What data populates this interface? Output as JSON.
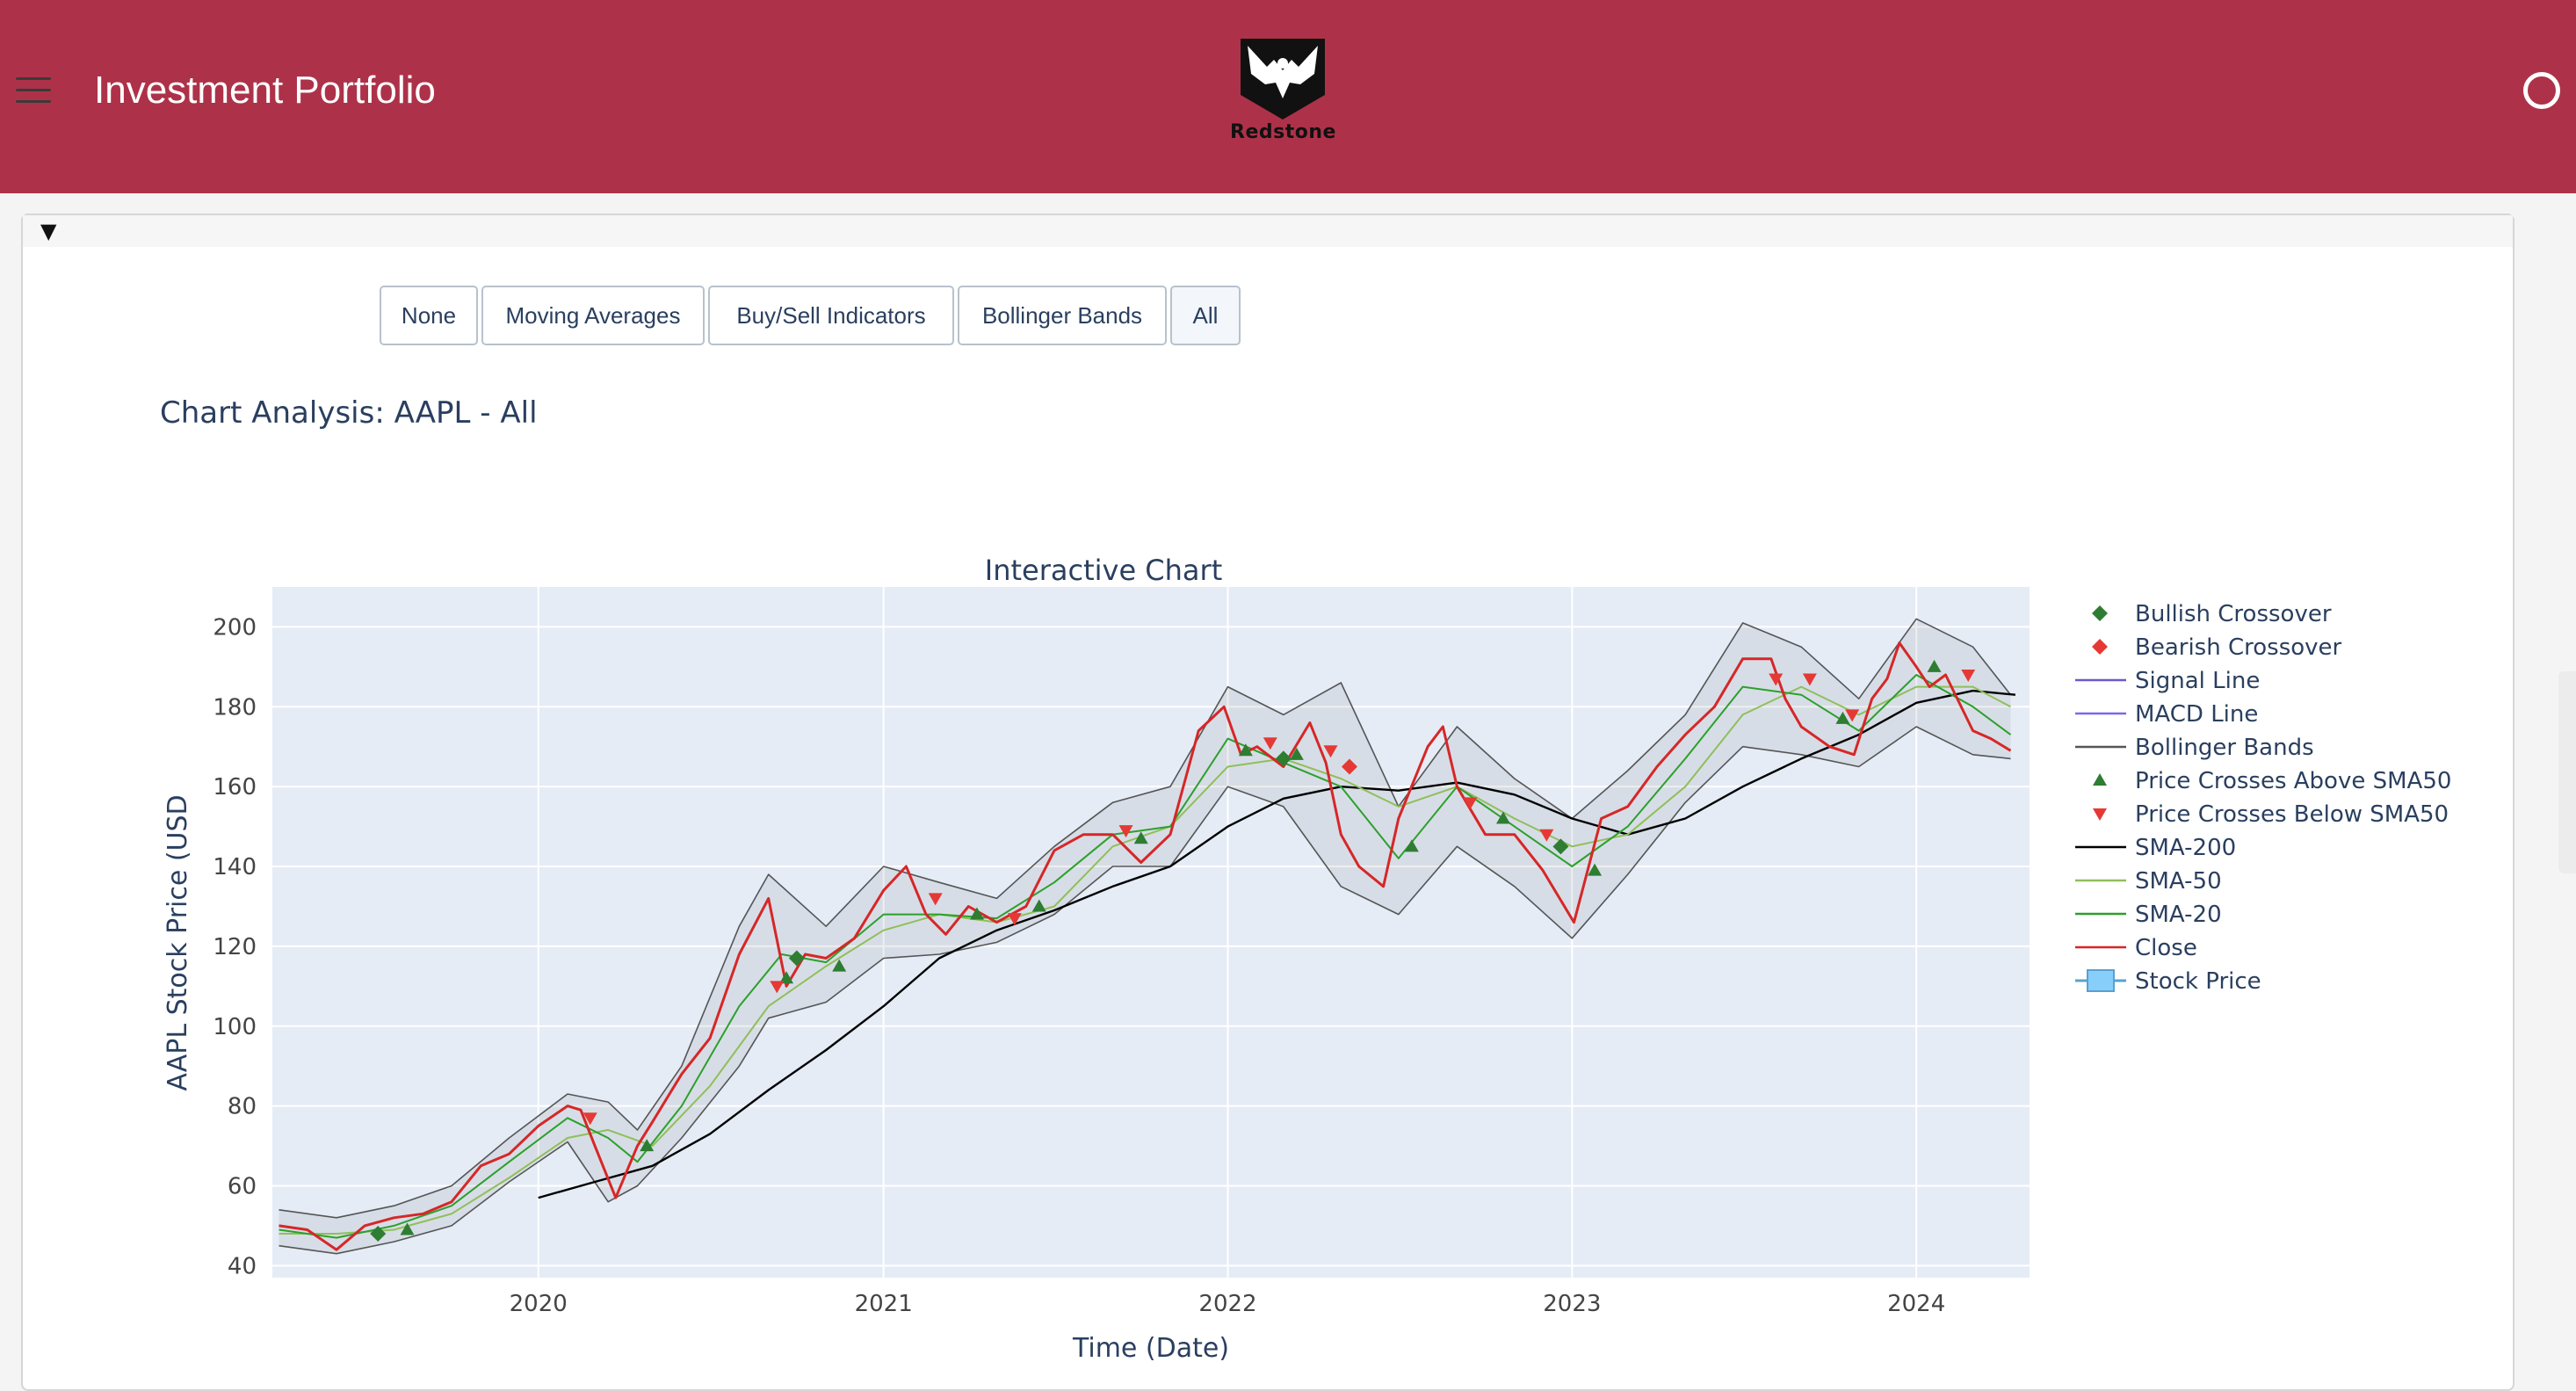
{
  "header": {
    "title": "Investment Portfolio",
    "logo_text": "Redstone",
    "brand_color": "#ad3249"
  },
  "toolbar": {
    "buttons": [
      "None",
      "Moving Averages",
      "Buy/Sell Indicators",
      "Bollinger Bands",
      "All"
    ],
    "selected": "All"
  },
  "analysis": {
    "title": "Chart Analysis: AAPL - All"
  },
  "chart_data": {
    "type": "line",
    "title": "Interactive Chart",
    "xlabel": "Time (Date)",
    "ylabel": "AAPL Stock Price (USD",
    "xlim": [
      "2019-03-25",
      "2024-04-30"
    ],
    "ylim": [
      37,
      210
    ],
    "x_ticks": [
      "2020",
      "2021",
      "2022",
      "2023",
      "2024"
    ],
    "y_ticks": [
      40,
      60,
      80,
      100,
      120,
      140,
      160,
      180,
      200
    ],
    "grid": true,
    "legend_position": "right",
    "colors": {
      "plot_bg": "#e5ecf6",
      "close": "#d62728",
      "sma20": "#2ca02c",
      "sma50": "#8fbf5a",
      "sma200": "#000000",
      "bollinger": "#555555",
      "macd": "#7b68ee",
      "signal": "#6a5acd",
      "bull": "#2e7d32",
      "bear": "#e53935",
      "stock_price": "#87cefa"
    },
    "close": {
      "name": "Close",
      "x": [
        "2019-04-01",
        "2019-05-01",
        "2019-06-01",
        "2019-07-01",
        "2019-08-01",
        "2019-09-01",
        "2019-10-01",
        "2019-11-01",
        "2019-12-01",
        "2020-01-01",
        "2020-02-01",
        "2020-02-15",
        "2020-03-01",
        "2020-03-23",
        "2020-04-15",
        "2020-05-01",
        "2020-06-01",
        "2020-07-01",
        "2020-08-01",
        "2020-09-01",
        "2020-09-20",
        "2020-10-10",
        "2020-11-01",
        "2020-12-01",
        "2021-01-01",
        "2021-01-25",
        "2021-02-15",
        "2021-03-08",
        "2021-04-01",
        "2021-05-01",
        "2021-06-01",
        "2021-07-01",
        "2021-08-01",
        "2021-09-01",
        "2021-10-01",
        "2021-11-01",
        "2021-12-01",
        "2021-12-28",
        "2022-01-15",
        "2022-02-01",
        "2022-03-01",
        "2022-03-29",
        "2022-04-15",
        "2022-05-01",
        "2022-05-20",
        "2022-06-15",
        "2022-07-01",
        "2022-08-01",
        "2022-08-17",
        "2022-09-01",
        "2022-10-01",
        "2022-11-01",
        "2022-12-01",
        "2023-01-03",
        "2023-02-01",
        "2023-03-01",
        "2023-04-01",
        "2023-05-01",
        "2023-06-01",
        "2023-07-01",
        "2023-07-31",
        "2023-08-15",
        "2023-09-01",
        "2023-10-01",
        "2023-10-27",
        "2023-11-15",
        "2023-12-01",
        "2023-12-14",
        "2024-01-01",
        "2024-01-15",
        "2024-02-01",
        "2024-03-01",
        "2024-03-20",
        "2024-04-10"
      ],
      "y": [
        50,
        49,
        44,
        50,
        52,
        53,
        56,
        65,
        68,
        75,
        80,
        79,
        70,
        57,
        70,
        76,
        88,
        97,
        118,
        132,
        110,
        118,
        117,
        122,
        134,
        140,
        128,
        123,
        130,
        126,
        130,
        144,
        148,
        148,
        141,
        148,
        174,
        180,
        168,
        170,
        165,
        176,
        166,
        148,
        140,
        135,
        152,
        170,
        175,
        160,
        148,
        148,
        139,
        126,
        152,
        155,
        165,
        173,
        180,
        192,
        192,
        182,
        175,
        170,
        168,
        182,
        187,
        196,
        190,
        185,
        188,
        174,
        172,
        169
      ]
    },
    "sma20": {
      "name": "SMA-20",
      "x": [
        "2019-04-01",
        "2019-06-01",
        "2019-08-01",
        "2019-10-01",
        "2019-12-01",
        "2020-02-01",
        "2020-03-15",
        "2020-04-15",
        "2020-06-01",
        "2020-08-01",
        "2020-09-15",
        "2020-11-01",
        "2021-01-01",
        "2021-03-01",
        "2021-05-01",
        "2021-07-01",
        "2021-09-01",
        "2021-11-01",
        "2022-01-01",
        "2022-03-01",
        "2022-05-01",
        "2022-07-01",
        "2022-09-01",
        "2022-11-01",
        "2023-01-01",
        "2023-03-01",
        "2023-05-01",
        "2023-07-01",
        "2023-09-01",
        "2023-11-01",
        "2024-01-01",
        "2024-03-01",
        "2024-04-10"
      ],
      "y": [
        49,
        47,
        50,
        55,
        66,
        77,
        72,
        66,
        80,
        105,
        118,
        116,
        128,
        128,
        127,
        136,
        148,
        150,
        172,
        166,
        160,
        142,
        160,
        150,
        140,
        150,
        167,
        185,
        183,
        174,
        188,
        180,
        173
      ]
    },
    "sma50": {
      "name": "SMA-50",
      "x": [
        "2019-04-01",
        "2019-06-01",
        "2019-08-01",
        "2019-10-01",
        "2019-12-01",
        "2020-02-01",
        "2020-03-15",
        "2020-05-01",
        "2020-07-01",
        "2020-09-01",
        "2020-11-01",
        "2021-01-01",
        "2021-03-01",
        "2021-05-01",
        "2021-07-01",
        "2021-09-01",
        "2021-11-01",
        "2022-01-01",
        "2022-03-01",
        "2022-05-01",
        "2022-07-01",
        "2022-09-01",
        "2022-11-01",
        "2023-01-01",
        "2023-03-01",
        "2023-05-01",
        "2023-07-01",
        "2023-09-01",
        "2023-11-01",
        "2024-01-01",
        "2024-03-01",
        "2024-04-10"
      ],
      "y": [
        48,
        48,
        49,
        53,
        62,
        72,
        74,
        70,
        85,
        105,
        115,
        124,
        128,
        126,
        130,
        145,
        150,
        165,
        167,
        162,
        155,
        160,
        152,
        145,
        148,
        160,
        178,
        185,
        178,
        185,
        185,
        180
      ]
    },
    "sma200": {
      "name": "SMA-200",
      "x": [
        "2020-01-01",
        "2020-03-01",
        "2020-05-01",
        "2020-07-01",
        "2020-09-01",
        "2020-11-01",
        "2021-01-01",
        "2021-03-01",
        "2021-05-01",
        "2021-07-01",
        "2021-09-01",
        "2021-11-01",
        "2022-01-01",
        "2022-03-01",
        "2022-05-01",
        "2022-07-01",
        "2022-09-01",
        "2022-11-01",
        "2023-01-01",
        "2023-03-01",
        "2023-05-01",
        "2023-07-01",
        "2023-09-01",
        "2023-11-01",
        "2024-01-01",
        "2024-03-01",
        "2024-04-15"
      ],
      "y": [
        57,
        61,
        65,
        73,
        84,
        94,
        105,
        117,
        124,
        129,
        135,
        140,
        150,
        157,
        160,
        159,
        161,
        158,
        152,
        148,
        152,
        160,
        167,
        173,
        181,
        184,
        183
      ]
    },
    "bollinger": {
      "name": "Bollinger Bands",
      "x": [
        "2019-04-01",
        "2019-06-01",
        "2019-08-01",
        "2019-10-01",
        "2019-12-01",
        "2020-02-01",
        "2020-03-15",
        "2020-04-15",
        "2020-06-01",
        "2020-08-01",
        "2020-09-01",
        "2020-11-01",
        "2021-01-01",
        "2021-03-01",
        "2021-05-01",
        "2021-07-01",
        "2021-09-01",
        "2021-11-01",
        "2022-01-01",
        "2022-03-01",
        "2022-05-01",
        "2022-07-01",
        "2022-09-01",
        "2022-11-01",
        "2023-01-01",
        "2023-03-01",
        "2023-05-01",
        "2023-07-01",
        "2023-09-01",
        "2023-11-01",
        "2024-01-01",
        "2024-03-01",
        "2024-04-10"
      ],
      "upper": [
        54,
        52,
        55,
        60,
        72,
        83,
        81,
        74,
        90,
        125,
        138,
        125,
        140,
        136,
        132,
        145,
        156,
        160,
        185,
        178,
        186,
        155,
        175,
        162,
        152,
        164,
        178,
        201,
        195,
        182,
        202,
        195,
        183
      ],
      "lower": [
        45,
        43,
        46,
        50,
        61,
        71,
        56,
        60,
        72,
        90,
        102,
        106,
        117,
        118,
        121,
        128,
        140,
        140,
        160,
        155,
        135,
        128,
        145,
        135,
        122,
        138,
        156,
        170,
        168,
        165,
        175,
        168,
        167
      ]
    },
    "price_above_sma50": {
      "name": "Price Crosses Above SMA50",
      "x": [
        "2019-08-15",
        "2020-04-25",
        "2020-09-20",
        "2020-11-15",
        "2021-04-10",
        "2021-06-15",
        "2021-10-01",
        "2022-01-20",
        "2022-03-15",
        "2022-07-15",
        "2022-10-20",
        "2023-01-25",
        "2023-10-15",
        "2024-01-20"
      ],
      "y": [
        49,
        70,
        112,
        115,
        128,
        130,
        147,
        169,
        168,
        145,
        152,
        139,
        177,
        190
      ]
    },
    "price_below_sma50": {
      "name": "Price Crosses Below SMA50",
      "x": [
        "2020-02-25",
        "2020-09-10",
        "2021-02-25",
        "2021-05-20",
        "2021-09-15",
        "2022-02-15",
        "2022-04-20",
        "2022-09-15",
        "2022-12-05",
        "2023-08-05",
        "2023-09-10",
        "2023-10-25",
        "2024-02-25"
      ],
      "y": [
        77,
        110,
        132,
        127,
        149,
        171,
        169,
        156,
        148,
        187,
        187,
        178,
        188
      ]
    },
    "bullish_crossover": {
      "name": "Bullish Crossover",
      "x": [
        "2019-07-15",
        "2020-10-01",
        "2022-03-01",
        "2022-12-20"
      ],
      "y": [
        48,
        117,
        167,
        145
      ]
    },
    "bearish_crossover": {
      "name": "Bearish Crossover",
      "x": [
        "2022-05-10"
      ],
      "y": [
        165
      ]
    },
    "legend": [
      "Bullish Crossover",
      "Bearish Crossover",
      "Signal Line",
      "MACD Line",
      "Bollinger Bands",
      "Price Crosses Above SMA50",
      "Price Crosses Below SMA50",
      "SMA-200",
      "SMA-50",
      "SMA-20",
      "Close",
      "Stock Price"
    ]
  }
}
